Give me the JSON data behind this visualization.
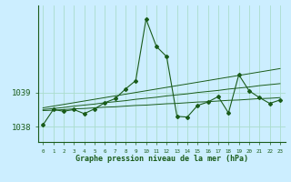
{
  "title": "Graphe pression niveau de la mer (hPa)",
  "background_color": "#cceeff",
  "grid_color": "#aaddcc",
  "line_color": "#1a5c1a",
  "x_labels": [
    "0",
    "1",
    "2",
    "3",
    "4",
    "5",
    "6",
    "7",
    "8",
    "9",
    "10",
    "11",
    "12",
    "13",
    "14",
    "15",
    "16",
    "17",
    "18",
    "19",
    "20",
    "21",
    "22",
    "23"
  ],
  "ylim": [
    1037.55,
    1041.55
  ],
  "yticks": [
    1038,
    1039
  ],
  "hours": [
    0,
    1,
    2,
    3,
    4,
    5,
    6,
    7,
    8,
    9,
    10,
    11,
    12,
    13,
    14,
    15,
    16,
    17,
    18,
    19,
    20,
    21,
    22,
    23
  ],
  "pressure": [
    1038.05,
    1038.5,
    1038.45,
    1038.5,
    1038.38,
    1038.52,
    1038.7,
    1038.82,
    1039.1,
    1039.35,
    1041.15,
    1040.35,
    1040.05,
    1038.3,
    1038.28,
    1038.62,
    1038.72,
    1038.88,
    1038.4,
    1039.52,
    1039.05,
    1038.85,
    1038.68,
    1038.78
  ],
  "trend1": [
    1038.47,
    1038.48,
    1038.5,
    1038.52,
    1038.53,
    1038.55,
    1038.57,
    1038.58,
    1038.6,
    1038.62,
    1038.63,
    1038.65,
    1038.67,
    1038.68,
    1038.7,
    1038.72,
    1038.73,
    1038.75,
    1038.77,
    1038.78,
    1038.8,
    1038.82,
    1038.83,
    1038.85
  ],
  "trend2": [
    1038.5,
    1038.53,
    1038.56,
    1038.6,
    1038.63,
    1038.66,
    1038.7,
    1038.73,
    1038.76,
    1038.8,
    1038.83,
    1038.86,
    1038.9,
    1038.93,
    1038.96,
    1039.0,
    1039.03,
    1039.06,
    1039.1,
    1039.13,
    1039.16,
    1039.2,
    1039.23,
    1039.26
  ],
  "trend3": [
    1038.55,
    1038.6,
    1038.65,
    1038.7,
    1038.75,
    1038.8,
    1038.85,
    1038.9,
    1038.95,
    1039.0,
    1039.05,
    1039.1,
    1039.15,
    1039.2,
    1039.25,
    1039.3,
    1039.35,
    1039.4,
    1039.45,
    1039.5,
    1039.55,
    1039.6,
    1039.65,
    1039.7
  ]
}
